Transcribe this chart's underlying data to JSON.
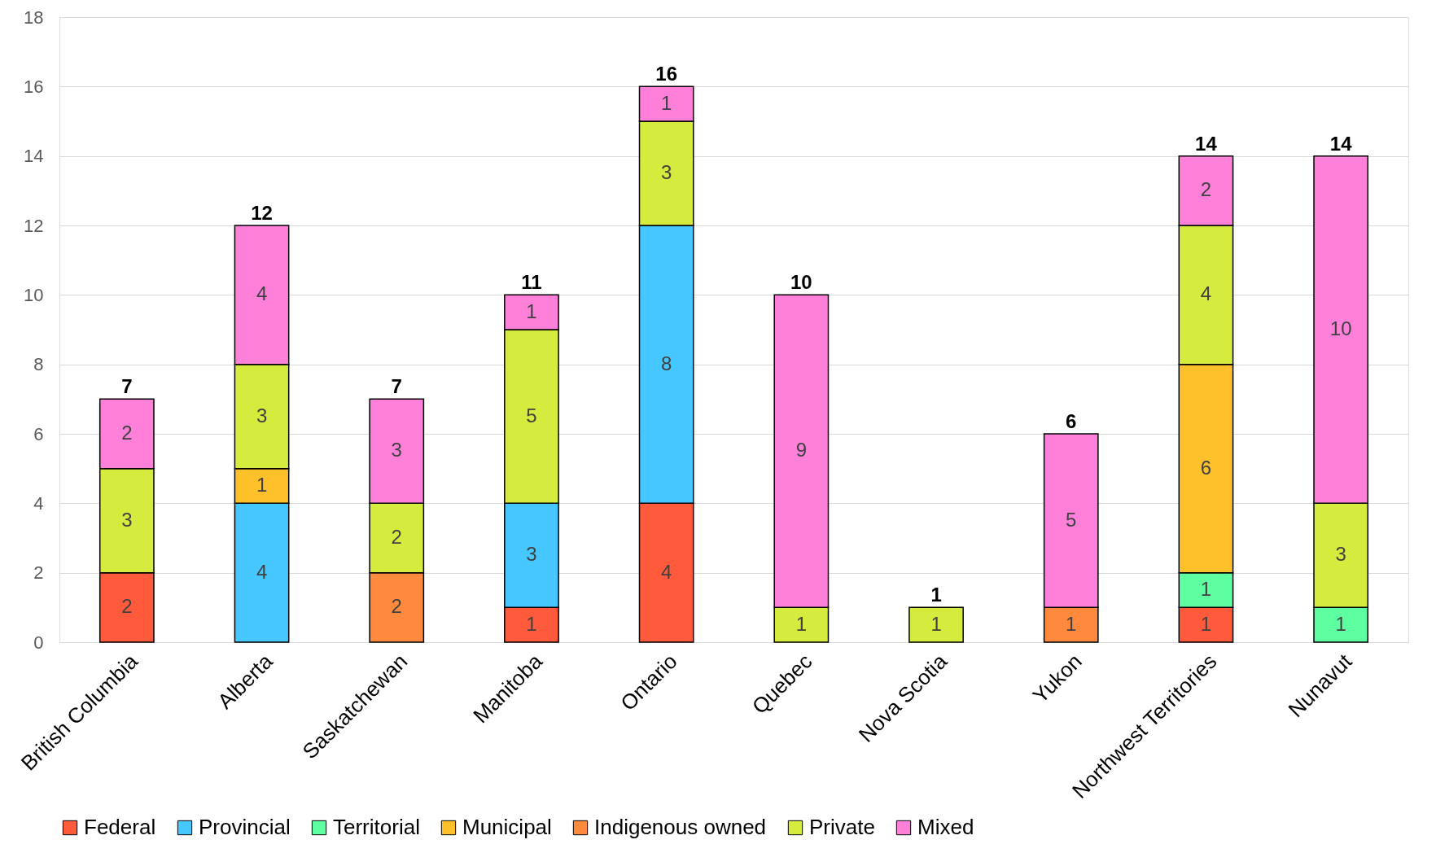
{
  "chart_data": {
    "type": "bar",
    "stacked": true,
    "categories": [
      "British Columbia",
      "Alberta",
      "Saskatchewan",
      "Manitoba",
      "Ontario",
      "Quebec",
      "Nova Scotia",
      "Yukon",
      "Northwest Territories",
      "Nunavut"
    ],
    "series": [
      {
        "name": "Federal",
        "color": "#ff5a3c",
        "values": [
          2,
          null,
          null,
          1,
          4,
          null,
          null,
          null,
          1,
          null
        ]
      },
      {
        "name": "Provincial",
        "color": "#47c7ff",
        "values": [
          null,
          4,
          null,
          3,
          8,
          null,
          null,
          null,
          null,
          null
        ]
      },
      {
        "name": "Territorial",
        "color": "#5effa0",
        "values": [
          null,
          null,
          null,
          null,
          null,
          null,
          null,
          null,
          1,
          1
        ]
      },
      {
        "name": "Municipal",
        "color": "#ffc12b",
        "values": [
          null,
          1,
          null,
          null,
          null,
          null,
          null,
          null,
          6,
          null
        ]
      },
      {
        "name": "Indigenous owned",
        "color": "#ff8a3d",
        "values": [
          null,
          null,
          2,
          null,
          null,
          null,
          null,
          1,
          null,
          null
        ]
      },
      {
        "name": "Private",
        "color": "#d5eb3d",
        "values": [
          3,
          3,
          2,
          5,
          3,
          1,
          1,
          null,
          4,
          3
        ]
      },
      {
        "name": "Mixed",
        "color": "#ff80d9",
        "values": [
          2,
          4,
          3,
          1,
          1,
          9,
          null,
          5,
          2,
          10
        ]
      }
    ],
    "totals": [
      "7",
      "12",
      "7",
      "11",
      "16",
      "10",
      "1",
      "6",
      "14",
      "14"
    ],
    "data_labels": true,
    "ylim": [
      0,
      18
    ],
    "yticks": [
      0,
      2,
      4,
      6,
      8,
      10,
      12,
      14,
      16,
      18
    ],
    "grid": "y",
    "legend": "bottom"
  }
}
